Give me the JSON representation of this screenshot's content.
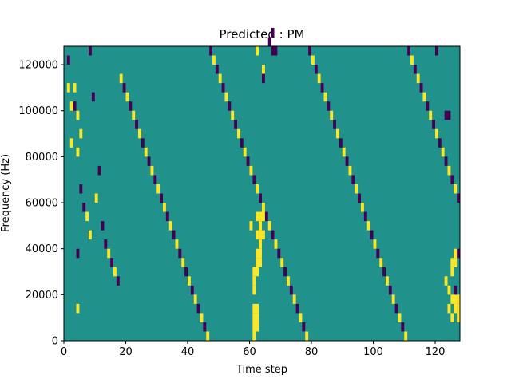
{
  "chart_data": {
    "type": "heatmap",
    "title": "Predicted : PM",
    "xlabel": "Time step",
    "ylabel": "Frequency (Hz)",
    "xlim": [
      0,
      128
    ],
    "ylim": [
      0,
      128000
    ],
    "x_ticks": [
      0,
      20,
      40,
      60,
      80,
      100,
      120
    ],
    "y_ticks": [
      0,
      20000,
      40000,
      60000,
      80000,
      100000,
      120000
    ],
    "grid": false,
    "legend": "none",
    "colors": {
      "low": "#440154",
      "mid": "#21918c",
      "high": "#fde725"
    },
    "cell_height_hz": 4000,
    "background_level": "mid",
    "cells": [
      [
        1,
        30,
        "low"
      ],
      [
        1,
        27,
        "high"
      ],
      [
        2,
        25,
        "high"
      ],
      [
        2,
        21,
        "high"
      ],
      [
        3,
        27,
        "high"
      ],
      [
        3,
        25,
        "low"
      ],
      [
        4,
        24,
        "high"
      ],
      [
        4,
        20,
        "high"
      ],
      [
        4,
        9,
        "low"
      ],
      [
        4,
        3,
        "high"
      ],
      [
        5,
        22,
        "high"
      ],
      [
        5,
        16,
        "low"
      ],
      [
        6,
        14,
        "low"
      ],
      [
        7,
        13,
        "high"
      ],
      [
        8,
        31,
        "low"
      ],
      [
        8,
        11,
        "high"
      ],
      [
        9,
        26,
        "low"
      ],
      [
        10,
        15,
        "high"
      ],
      [
        11,
        18,
        "low"
      ],
      [
        12,
        12,
        "low"
      ],
      [
        13,
        10,
        "low"
      ],
      [
        14,
        9,
        "high"
      ],
      [
        15,
        8,
        "low"
      ],
      [
        16,
        7,
        "high"
      ],
      [
        17,
        6,
        "low"
      ],
      [
        18,
        28,
        "high"
      ],
      [
        19,
        27,
        "low"
      ],
      [
        20,
        26,
        "high"
      ],
      [
        21,
        25,
        "low"
      ],
      [
        22,
        24,
        "high"
      ],
      [
        23,
        23,
        "low"
      ],
      [
        24,
        22,
        "high"
      ],
      [
        25,
        21,
        "low"
      ],
      [
        26,
        20,
        "high"
      ],
      [
        27,
        19,
        "low"
      ],
      [
        28,
        18,
        "high"
      ],
      [
        29,
        17,
        "low"
      ],
      [
        30,
        16,
        "high"
      ],
      [
        31,
        15,
        "low"
      ],
      [
        32,
        14,
        "high"
      ],
      [
        33,
        13,
        "low"
      ],
      [
        34,
        12,
        "high"
      ],
      [
        35,
        11,
        "low"
      ],
      [
        36,
        10,
        "high"
      ],
      [
        37,
        9,
        "low"
      ],
      [
        38,
        8,
        "high"
      ],
      [
        39,
        7,
        "low"
      ],
      [
        40,
        6,
        "high"
      ],
      [
        41,
        5,
        "low"
      ],
      [
        42,
        4,
        "high"
      ],
      [
        43,
        3,
        "low"
      ],
      [
        44,
        2,
        "high"
      ],
      [
        45,
        1,
        "low"
      ],
      [
        46,
        0,
        "high"
      ],
      [
        47,
        31,
        "low"
      ],
      [
        48,
        30,
        "high"
      ],
      [
        49,
        29,
        "low"
      ],
      [
        50,
        28,
        "high"
      ],
      [
        51,
        27,
        "low"
      ],
      [
        52,
        26,
        "high"
      ],
      [
        53,
        25,
        "low"
      ],
      [
        54,
        24,
        "high"
      ],
      [
        55,
        23,
        "low"
      ],
      [
        56,
        22,
        "high"
      ],
      [
        57,
        21,
        "low"
      ],
      [
        58,
        20,
        "high"
      ],
      [
        59,
        19,
        "low"
      ],
      [
        60,
        18,
        "high"
      ],
      [
        61,
        17,
        "low"
      ],
      [
        62,
        16,
        "high"
      ],
      [
        63,
        15,
        "low"
      ],
      [
        64,
        14,
        "high"
      ],
      [
        65,
        13,
        "low"
      ],
      [
        66,
        12,
        "high"
      ],
      [
        67,
        11,
        "low"
      ],
      [
        68,
        10,
        "high"
      ],
      [
        69,
        9,
        "low"
      ],
      [
        70,
        8,
        "high"
      ],
      [
        71,
        7,
        "low"
      ],
      [
        72,
        6,
        "high"
      ],
      [
        73,
        5,
        "low"
      ],
      [
        74,
        4,
        "high"
      ],
      [
        75,
        3,
        "low"
      ],
      [
        76,
        2,
        "high"
      ],
      [
        77,
        1,
        "low"
      ],
      [
        78,
        0,
        "high"
      ],
      [
        79,
        31,
        "low"
      ],
      [
        80,
        30,
        "high"
      ],
      [
        81,
        29,
        "low"
      ],
      [
        82,
        28,
        "high"
      ],
      [
        83,
        27,
        "low"
      ],
      [
        84,
        26,
        "high"
      ],
      [
        85,
        25,
        "low"
      ],
      [
        86,
        24,
        "high"
      ],
      [
        87,
        23,
        "low"
      ],
      [
        88,
        22,
        "high"
      ],
      [
        89,
        21,
        "low"
      ],
      [
        90,
        20,
        "high"
      ],
      [
        91,
        19,
        "low"
      ],
      [
        92,
        18,
        "high"
      ],
      [
        93,
        17,
        "low"
      ],
      [
        94,
        16,
        "high"
      ],
      [
        95,
        15,
        "low"
      ],
      [
        96,
        14,
        "high"
      ],
      [
        97,
        13,
        "low"
      ],
      [
        98,
        12,
        "high"
      ],
      [
        99,
        11,
        "low"
      ],
      [
        100,
        10,
        "high"
      ],
      [
        101,
        9,
        "low"
      ],
      [
        102,
        8,
        "high"
      ],
      [
        103,
        7,
        "low"
      ],
      [
        104,
        6,
        "high"
      ],
      [
        105,
        5,
        "low"
      ],
      [
        106,
        4,
        "high"
      ],
      [
        107,
        3,
        "low"
      ],
      [
        108,
        2,
        "high"
      ],
      [
        109,
        1,
        "low"
      ],
      [
        110,
        0,
        "high"
      ],
      [
        111,
        31,
        "low"
      ],
      [
        112,
        30,
        "high"
      ],
      [
        113,
        29,
        "low"
      ],
      [
        114,
        28,
        "high"
      ],
      [
        115,
        27,
        "low"
      ],
      [
        116,
        26,
        "high"
      ],
      [
        117,
        25,
        "low"
      ],
      [
        118,
        24,
        "high"
      ],
      [
        119,
        23,
        "low"
      ],
      [
        120,
        22,
        "high"
      ],
      [
        121,
        21,
        "low"
      ],
      [
        122,
        20,
        "high"
      ],
      [
        123,
        19,
        "low"
      ],
      [
        124,
        18,
        "high"
      ],
      [
        125,
        17,
        "low"
      ],
      [
        126,
        16,
        "high"
      ],
      [
        127,
        15,
        "low"
      ],
      [
        61,
        0,
        "high"
      ],
      [
        61,
        1,
        "high"
      ],
      [
        61,
        2,
        "high"
      ],
      [
        61,
        3,
        "high"
      ],
      [
        62,
        1,
        "high"
      ],
      [
        62,
        2,
        "high"
      ],
      [
        62,
        3,
        "high"
      ],
      [
        61,
        5,
        "high"
      ],
      [
        61,
        6,
        "high"
      ],
      [
        61,
        7,
        "high"
      ],
      [
        62,
        7,
        "high"
      ],
      [
        62,
        8,
        "high"
      ],
      [
        63,
        8,
        "high"
      ],
      [
        62,
        9,
        "high"
      ],
      [
        63,
        9,
        "high"
      ],
      [
        63,
        10,
        "high"
      ],
      [
        62,
        11,
        "high"
      ],
      [
        63,
        11,
        "high"
      ],
      [
        63,
        12,
        "high"
      ],
      [
        62,
        13,
        "high"
      ],
      [
        63,
        13,
        "high"
      ],
      [
        64,
        11,
        "high"
      ],
      [
        64,
        13,
        "high"
      ],
      [
        60,
        12,
        "high"
      ],
      [
        125,
        2,
        "high"
      ],
      [
        126,
        3,
        "high"
      ],
      [
        127,
        3,
        "high"
      ],
      [
        126,
        4,
        "high"
      ],
      [
        127,
        4,
        "high"
      ],
      [
        125,
        4,
        "high"
      ],
      [
        127,
        2,
        "high"
      ],
      [
        126,
        5,
        "low"
      ],
      [
        124,
        5,
        "high"
      ],
      [
        124,
        3,
        "high"
      ],
      [
        123,
        6,
        "high"
      ],
      [
        125,
        7,
        "high"
      ],
      [
        125,
        8,
        "high"
      ],
      [
        126,
        8,
        "high"
      ],
      [
        127,
        9,
        "low"
      ],
      [
        126,
        9,
        "high"
      ],
      [
        123,
        24,
        "low"
      ],
      [
        124,
        24,
        "low"
      ],
      [
        120,
        31,
        "low"
      ],
      [
        67,
        31,
        "low"
      ],
      [
        68,
        31,
        "low"
      ],
      [
        64,
        29,
        "high"
      ],
      [
        64,
        28,
        "low"
      ],
      [
        62,
        31,
        "high"
      ],
      [
        66,
        32,
        "low"
      ],
      [
        67,
        33,
        "low"
      ]
    ]
  }
}
